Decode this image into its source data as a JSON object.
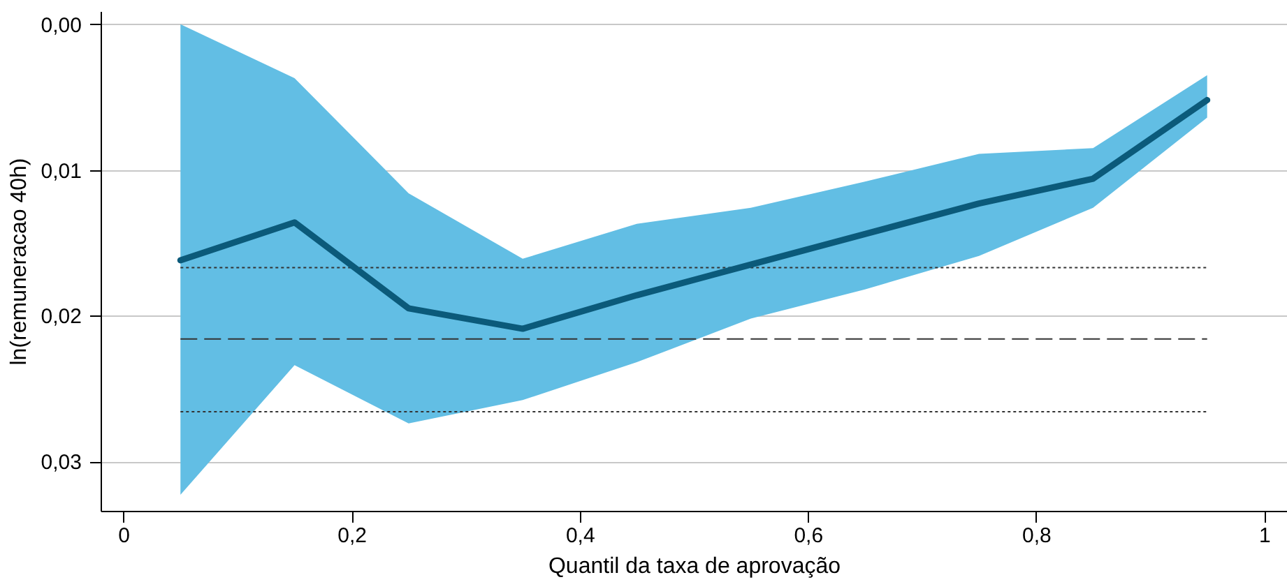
{
  "chart_data": {
    "type": "line",
    "xlabel": "Quantil da taxa de aprovação",
    "ylabel": "ln(remuneracao 40h)",
    "x": [
      0.05,
      0.15,
      0.25,
      0.35,
      0.45,
      0.55,
      0.65,
      0.75,
      0.85,
      0.95
    ],
    "series": [
      {
        "color": "#0b5a7a",
        "values": [
          0.0162,
          0.0136,
          0.0195,
          0.0209,
          0.0186,
          0.0165,
          0.0144,
          0.0123,
          0.0106,
          0.0052
        ],
        "lower": [
          0.0323,
          0.0234,
          0.0274,
          0.0258,
          0.0232,
          0.0202,
          0.0182,
          0.0159,
          0.0126,
          0.0064
        ],
        "upper": [
          0.0,
          0.0037,
          0.0116,
          0.0161,
          0.0137,
          0.0126,
          0.0108,
          0.0089,
          0.0085,
          0.0035
        ]
      }
    ],
    "ref_lines": [
      {
        "axis": "y",
        "value": 0.0167,
        "line_style": "dotted",
        "color": "#333333"
      },
      {
        "axis": "y",
        "value": 0.0216,
        "line_style": "dashed",
        "color": "#333333"
      },
      {
        "axis": "y",
        "value": 0.0266,
        "line_style": "dotted",
        "color": "#333333"
      }
    ],
    "xlim": [
      -0.02,
      1.02
    ],
    "xticks": [
      {
        "value": 0,
        "label": "0"
      },
      {
        "value": 0.2,
        "label": "0,2"
      },
      {
        "value": 0.4,
        "label": "0,4"
      },
      {
        "value": 0.6,
        "label": "0,6"
      },
      {
        "value": 0.8,
        "label": "0,8"
      },
      {
        "value": 1,
        "label": "1"
      }
    ],
    "ylim": [
      0.0334,
      -0.0009
    ],
    "yticks": [
      {
        "value": 0,
        "label": "0,00"
      },
      {
        "value": 0.01,
        "label": "0,01"
      },
      {
        "value": 0.02,
        "label": "0,02"
      },
      {
        "value": 0.03,
        "label": "0,03"
      }
    ],
    "grid": "y",
    "line_style": "solid",
    "marker": "none"
  }
}
